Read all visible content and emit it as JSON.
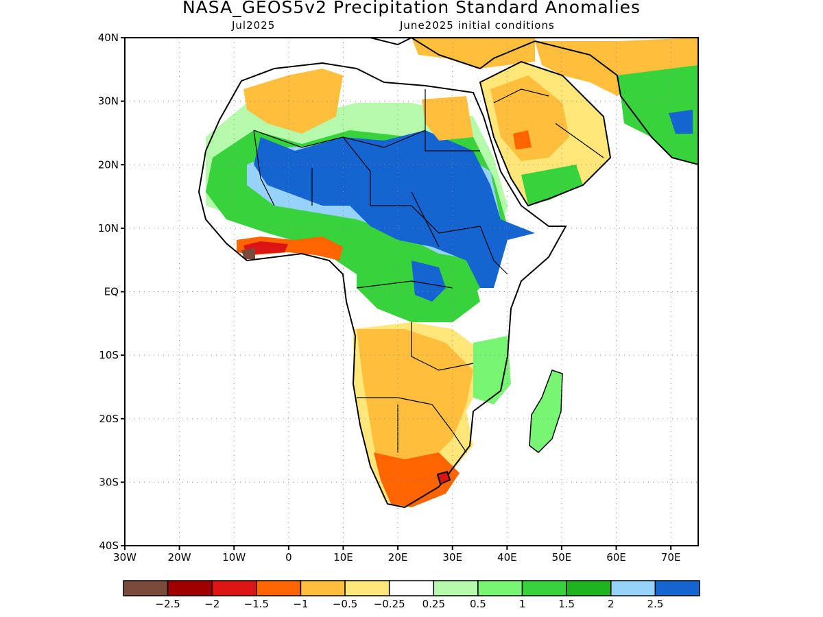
{
  "title": "NASA_GEOS5v2 Precipitation Standard Anomalies",
  "subtitle_left": "Jul2025",
  "subtitle_right": "June2025 initial conditions",
  "map": {
    "projection": "cylindrical",
    "lon_range": [
      -30,
      75
    ],
    "lat_range": [
      -40,
      40
    ],
    "lat_labels": [
      "40N",
      "30N",
      "20N",
      "10N",
      "EQ",
      "10S",
      "20S",
      "30S",
      "40S"
    ],
    "lat_values": [
      40,
      30,
      20,
      10,
      0,
      -10,
      -20,
      -30,
      -40
    ],
    "lon_labels": [
      "30W",
      "20W",
      "10W",
      "0",
      "10E",
      "20E",
      "30E",
      "40E",
      "50E",
      "60E",
      "70E"
    ],
    "lon_values": [
      -30,
      -20,
      -10,
      0,
      10,
      20,
      30,
      40,
      50,
      60,
      70
    ],
    "grid": "dotted",
    "region": "Africa and Middle East"
  },
  "colorbar": {
    "colors": [
      "#7a4a3c",
      "#a00000",
      "#dc1414",
      "#ff6400",
      "#ffbe3c",
      "#ffe678",
      "#ffffff",
      "#b4faaa",
      "#78f573",
      "#37d23c",
      "#1eb41e",
      "#96d2fa",
      "#1464d2"
    ],
    "labels": [
      "−2.5",
      "−2",
      "−1.5",
      "−1",
      "−0.5",
      "−0.25",
      "0.25",
      "0.5",
      "1",
      "1.5",
      "2",
      "2.5"
    ]
  },
  "anomaly_regions": [
    {
      "name": "Sahel / Sudan / Ethiopia wet",
      "level": "2.5",
      "color": "#1464d2"
    },
    {
      "name": "Central Africa wet",
      "level": "1.5",
      "color": "#37d23c"
    },
    {
      "name": "Southern Africa dry",
      "level": "-0.5",
      "color": "#ffbe3c"
    },
    {
      "name": "South Africa dry",
      "level": "-1",
      "color": "#ff6400"
    },
    {
      "name": "Guinea coast dry",
      "level": "-1.5",
      "color": "#dc1414"
    },
    {
      "name": "Arabian Peninsula dry",
      "level": "-0.5",
      "color": "#ffbe3c"
    },
    {
      "name": "Pakistan wet",
      "level": "1.5",
      "color": "#37d23c"
    }
  ]
}
